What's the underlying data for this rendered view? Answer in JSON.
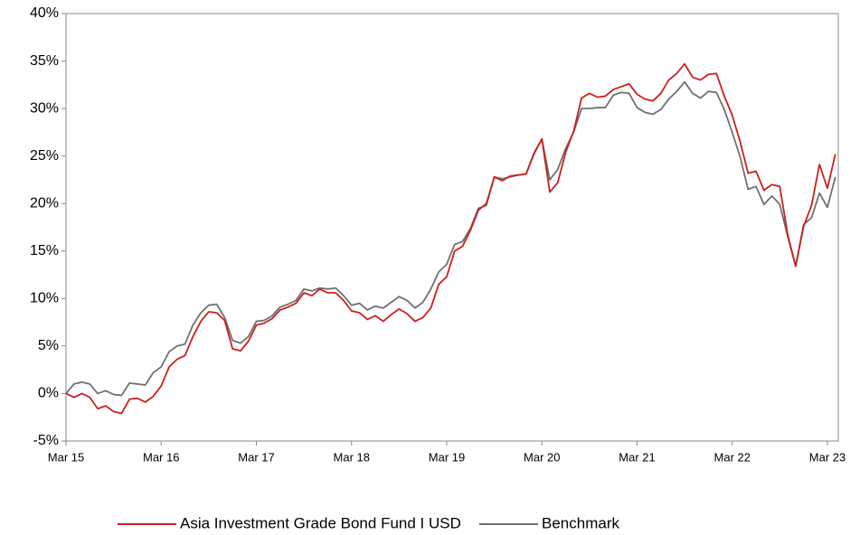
{
  "chart_data": {
    "type": "line",
    "categories": [
      "Mar 15",
      null,
      null,
      null,
      null,
      null,
      null,
      null,
      null,
      null,
      null,
      null,
      "Mar 16",
      null,
      null,
      null,
      null,
      null,
      null,
      null,
      null,
      null,
      null,
      null,
      "Mar 17",
      null,
      null,
      null,
      null,
      null,
      null,
      null,
      null,
      null,
      null,
      null,
      "Mar 18",
      null,
      null,
      null,
      null,
      null,
      null,
      null,
      null,
      null,
      null,
      null,
      "Mar 19",
      null,
      null,
      null,
      null,
      null,
      null,
      null,
      null,
      null,
      null,
      null,
      "Mar 20",
      null,
      null,
      null,
      null,
      null,
      null,
      null,
      null,
      null,
      null,
      null,
      "Mar 21",
      null,
      null,
      null,
      null,
      null,
      null,
      null,
      null,
      null,
      null,
      null,
      "Mar 22",
      null,
      null,
      null,
      null,
      null,
      null,
      null,
      null,
      null,
      null,
      null,
      "Mar 23",
      null
    ],
    "series": [
      {
        "name": "Asia Investment Grade Bond Fund I USD",
        "color": "#cc1f1f",
        "values": [
          0,
          -0.4,
          0,
          -0.4,
          -1.6,
          -1.3,
          -1.9,
          -2.1,
          -0.6,
          -0.5,
          -0.9,
          -0.3,
          0.8,
          2.8,
          3.6,
          4.0,
          6.0,
          7.6,
          8.6,
          8.5,
          7.7,
          4.7,
          4.5,
          5.5,
          7.2,
          7.4,
          7.9,
          8.8,
          9.1,
          9.5,
          10.6,
          10.3,
          11.0,
          10.6,
          10.6,
          9.8,
          8.7,
          8.5,
          7.8,
          8.2,
          7.6,
          8.3,
          8.9,
          8.4,
          7.6,
          8.0,
          9.0,
          11.5,
          12.3,
          15.0,
          15.5,
          17.2,
          19.3,
          20.0,
          22.8,
          22.4,
          22.9,
          23.0,
          23.1,
          25.3,
          26.8,
          21.2,
          22.2,
          25.4,
          27.6,
          31.1,
          31.6,
          31.2,
          31.3,
          32.0,
          32.3,
          32.6,
          31.5,
          31.0,
          30.8,
          31.6,
          33.0,
          33.7,
          34.7,
          33.3,
          33.0,
          33.6,
          33.7,
          31.3,
          29.3,
          26.5,
          23.2,
          23.4,
          21.4,
          22.0,
          21.8,
          16.7,
          13.4,
          17.6,
          19.8,
          24.1,
          21.6,
          25.2
        ]
      },
      {
        "name": "Benchmark",
        "color": "#707070",
        "values": [
          0,
          1.0,
          1.2,
          1.0,
          0,
          0.3,
          -0.1,
          -0.2,
          1.1,
          1.0,
          0.9,
          2.2,
          2.8,
          4.4,
          5.0,
          5.2,
          7.2,
          8.5,
          9.3,
          9.4,
          8.0,
          5.6,
          5.3,
          6.0,
          7.6,
          7.7,
          8.2,
          9.1,
          9.4,
          9.8,
          11.0,
          10.8,
          11.1,
          11.0,
          11.1,
          10.3,
          9.3,
          9.5,
          8.8,
          9.2,
          9.0,
          9.6,
          10.2,
          9.8,
          9.0,
          9.6,
          11.0,
          12.8,
          13.6,
          15.7,
          16.0,
          17.4,
          19.5,
          19.8,
          22.8,
          22.6,
          22.8,
          23.0,
          23.1,
          25.2,
          26.8,
          22.5,
          23.6,
          25.8,
          27.5,
          30.0,
          30.0,
          30.1,
          30.1,
          31.4,
          31.7,
          31.6,
          30.1,
          29.6,
          29.4,
          29.9,
          31.0,
          31.8,
          32.8,
          31.6,
          31.1,
          31.8,
          31.7,
          29.9,
          27.5,
          24.9,
          21.5,
          21.8,
          19.9,
          20.8,
          19.9,
          16.5,
          13.4,
          17.8,
          18.5,
          21.1,
          19.6,
          22.8
        ]
      }
    ],
    "ylim": [
      -5,
      40
    ],
    "yticks": [
      {
        "value": -5,
        "label": "-5%"
      },
      {
        "value": 0,
        "label": "0%"
      },
      {
        "value": 5,
        "label": "5%"
      },
      {
        "value": 10,
        "label": "10%"
      },
      {
        "value": 15,
        "label": "15%"
      },
      {
        "value": 20,
        "label": "20%"
      },
      {
        "value": 25,
        "label": "25%"
      },
      {
        "value": 30,
        "label": "30%"
      },
      {
        "value": 35,
        "label": "35%"
      },
      {
        "value": 40,
        "label": "40%"
      }
    ],
    "grid": false,
    "legend": "bottom"
  }
}
